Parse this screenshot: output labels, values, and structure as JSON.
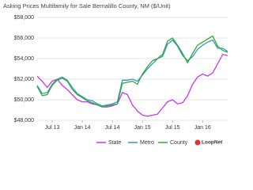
{
  "chart_data": {
    "type": "line",
    "title": "Asking Prices Multifamily for Sale Bernalillo County, NM ($/Unit)",
    "categories": [
      null,
      null,
      null,
      "Jul 13",
      null,
      null,
      null,
      null,
      null,
      "Jan 14",
      null,
      null,
      null,
      null,
      null,
      "Jul 14",
      null,
      null,
      null,
      null,
      null,
      "Jan 15",
      null,
      null,
      null,
      null,
      null,
      "Jul 15",
      null,
      null,
      null,
      null,
      null,
      "Jan 16",
      null,
      null,
      null,
      null,
      null
    ],
    "series": [
      {
        "name": "State",
        "color": "#cc33ee",
        "values": [
          52300,
          51800,
          51200,
          51800,
          52000,
          51400,
          51000,
          50500,
          50000,
          49800,
          49800,
          49600,
          49500,
          49300,
          49300,
          49400,
          49600,
          50700,
          50500,
          49500,
          48900,
          48500,
          48400,
          48500,
          48600,
          49200,
          49800,
          50000,
          49600,
          49700,
          50400,
          51500,
          52200,
          52500,
          52300,
          52600,
          53500,
          54400,
          54300
        ]
      },
      {
        "name": "Metro",
        "color": "#3399cc",
        "values": [
          51400,
          50600,
          50700,
          51500,
          52000,
          52200,
          51900,
          51200,
          50600,
          50300,
          50000,
          49900,
          49600,
          49400,
          49500,
          49600,
          49800,
          51900,
          51900,
          52000,
          51800,
          52400,
          53000,
          53500,
          54000,
          54200,
          55400,
          55800,
          55200,
          54300,
          53800,
          54200,
          54900,
          55300,
          55600,
          55800,
          55000,
          55000,
          54700
        ]
      },
      {
        "name": "County",
        "color": "#33aa33",
        "values": [
          51300,
          50400,
          50500,
          51400,
          51900,
          52100,
          51800,
          51000,
          50500,
          50200,
          49900,
          49700,
          49500,
          49300,
          49400,
          49500,
          49600,
          51600,
          51700,
          51800,
          51500,
          52500,
          53200,
          53800,
          54000,
          54400,
          55700,
          56000,
          55300,
          54500,
          53600,
          54500,
          55300,
          55600,
          55900,
          56200,
          55200,
          54800,
          54600
        ]
      }
    ],
    "ylim": [
      48000,
      58000
    ],
    "yticks": [
      {
        "value": 48000,
        "label": "$48,000"
      },
      {
        "value": 50000,
        "label": "$50,000"
      },
      {
        "value": 52000,
        "label": "$52,000"
      },
      {
        "value": 54000,
        "label": "$54,000"
      },
      {
        "value": 56000,
        "label": "$56,000"
      },
      {
        "value": 58000,
        "label": "$58,000"
      }
    ],
    "grid": true,
    "logo": "LoopNet"
  }
}
